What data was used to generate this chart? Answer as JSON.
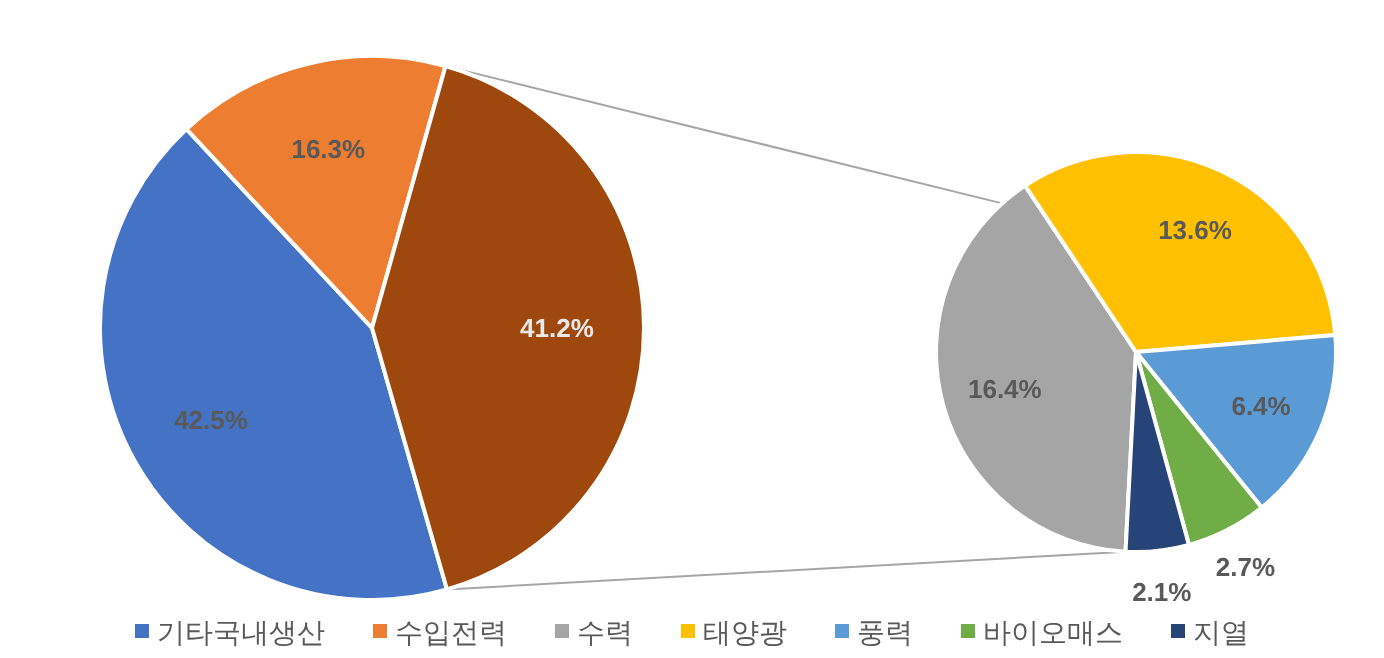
{
  "chart_data": [
    {
      "type": "pie",
      "categories": [
        "기타국내생산",
        "수입전력",
        null
      ],
      "values": [
        42.5,
        16.3,
        41.2
      ],
      "colors": [
        "#4472c4",
        "#ed7d31",
        "#9e480e"
      ],
      "value_labels": [
        "42.5%",
        "16.3%",
        "41.2%"
      ],
      "legend": "bottom"
    },
    {
      "type": "pie",
      "categories": [
        "수력",
        "태양광",
        "풍력",
        "바이오매스",
        "지열"
      ],
      "values": [
        16.4,
        13.6,
        6.4,
        2.7,
        2.1
      ],
      "colors": [
        "#a5a5a5",
        "#ffc000",
        "#5b9bd5",
        "#70ad47",
        "#264478"
      ],
      "value_labels": [
        "16.4%",
        "13.6%",
        "6.4%",
        "2.7%",
        "2.1%"
      ],
      "legend": "bottom"
    }
  ]
}
